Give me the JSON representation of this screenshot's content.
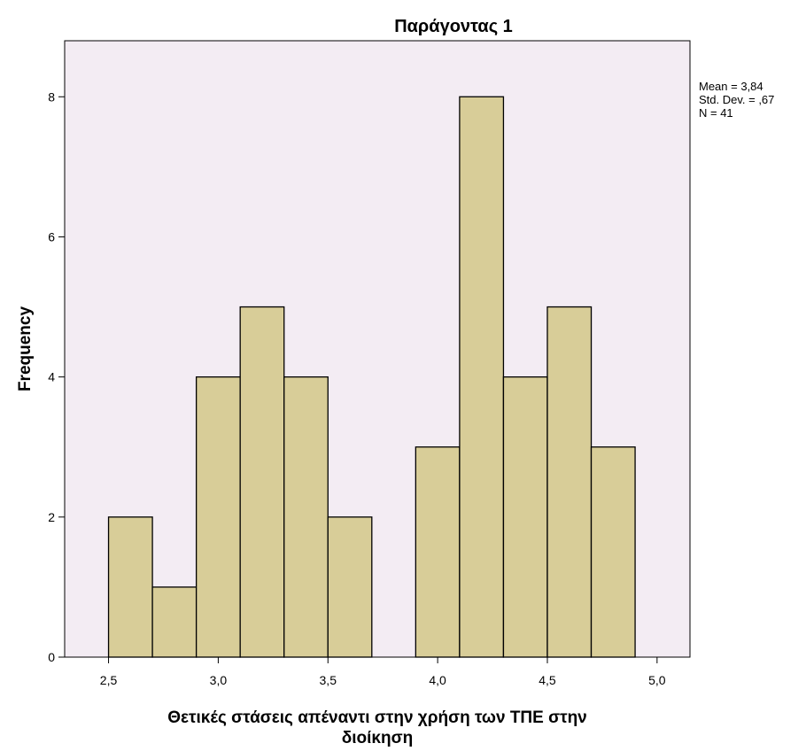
{
  "chart_data": {
    "type": "bar",
    "title": "Παράγοντας 1",
    "xlabel": "Θετικές στάσεις απέναντι στην χρήση των ΤΠΕ στην διοίκηση",
    "xlabel_lines": [
      "Θετικές στάσεις απέναντι στην χρήση των ΤΠΕ στην",
      "διοίκηση"
    ],
    "ylabel": "Frequency",
    "xlim": [
      2.3,
      5.15
    ],
    "ylim": [
      0,
      8.8
    ],
    "x_ticks": [
      2.5,
      3.0,
      3.5,
      4.0,
      4.5,
      5.0
    ],
    "x_tick_labels": [
      "2,5",
      "3,0",
      "3,5",
      "4,0",
      "4,5",
      "5,0"
    ],
    "y_ticks": [
      0,
      2,
      4,
      6,
      8
    ],
    "y_tick_labels": [
      "0",
      "2",
      "4",
      "6",
      "8"
    ],
    "bins": [
      {
        "start": 2.5,
        "end": 2.7,
        "count": 2
      },
      {
        "start": 2.7,
        "end": 2.9,
        "count": 1
      },
      {
        "start": 2.9,
        "end": 3.1,
        "count": 4
      },
      {
        "start": 3.1,
        "end": 3.3,
        "count": 5
      },
      {
        "start": 3.3,
        "end": 3.5,
        "count": 4
      },
      {
        "start": 3.5,
        "end": 3.7,
        "count": 2
      },
      {
        "start": 3.7,
        "end": 3.9,
        "count": 0
      },
      {
        "start": 3.9,
        "end": 4.1,
        "count": 3
      },
      {
        "start": 4.1,
        "end": 4.3,
        "count": 8
      },
      {
        "start": 4.3,
        "end": 4.5,
        "count": 4
      },
      {
        "start": 4.5,
        "end": 4.7,
        "count": 5
      },
      {
        "start": 4.7,
        "end": 4.9,
        "count": 3
      }
    ],
    "stats": [
      "Mean = 3,84",
      "Std. Dev. = ,67",
      "N = 41"
    ],
    "grid": false,
    "colors": {
      "bar_fill": "#d8cd98",
      "bar_stroke": "#000000",
      "plot_background": "#f3ecf3",
      "frame": "#000000"
    }
  }
}
